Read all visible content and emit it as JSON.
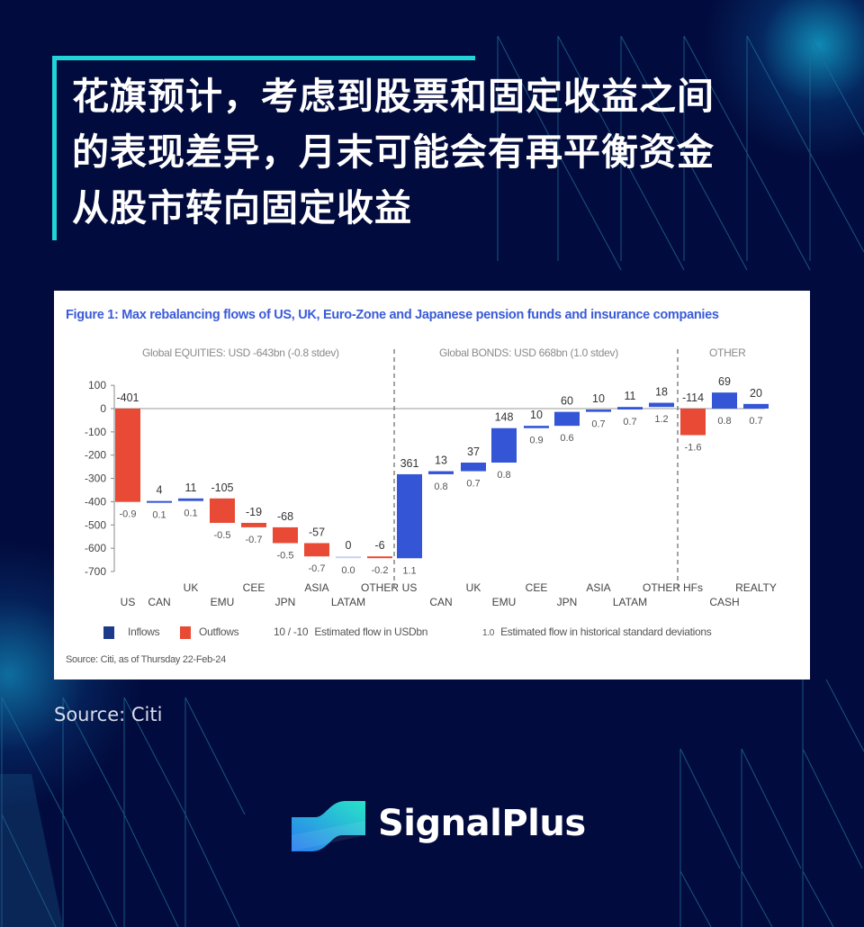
{
  "headline": {
    "lines": [
      "花旗预计，考虑到股票和固定收益之间",
      "的表现差异，月末可能会有再平衡资金",
      "从股市转向固定收益"
    ],
    "accent_color": "#22d3d8"
  },
  "figure": {
    "title": "Figure 1:  Max rebalancing flows of US, UK, Euro-Zone and Japanese pension funds and insurance companies",
    "section_labels": {
      "equities": "Global EQUITIES: USD -643bn (-0.8 stdev)",
      "bonds": "Global BONDS: USD 668bn (1.0 stdev)",
      "other": "OTHER"
    },
    "legend": {
      "inflows": "Inflows",
      "outflows": "Outflows",
      "usd_key": "10 / -10",
      "usd_desc": "Estimated flow in USDbn",
      "stdev_key": "1.0",
      "stdev_desc": "Estimated flow in historical standard deviations"
    },
    "source": "Source: Citi, as of Thursday 22-Feb-24"
  },
  "chart_data": {
    "type": "bar",
    "subtype": "waterfall",
    "title": "Figure 1: Max rebalancing flows of US, UK, Euro-Zone and Japanese pension funds and insurance companies",
    "xlabel": "",
    "ylabel": "",
    "ylim": [
      -700,
      100
    ],
    "yticks": [
      100,
      0,
      -100,
      -200,
      -300,
      -400,
      -500,
      -600,
      -700
    ],
    "grid": false,
    "legend_position": "bottom",
    "colors": {
      "inflows": "#3355d6",
      "outflows": "#e84a35"
    },
    "groups": [
      {
        "name": "Global EQUITIES: USD -643bn (-0.8 stdev)",
        "categories": [
          "US",
          "CAN",
          "UK",
          "EMU",
          "CEE",
          "JPN",
          "ASIA",
          "LATAM",
          "OTHER"
        ],
        "flows_usd_bn": [
          -401,
          4,
          11,
          -105,
          -19,
          -68,
          -57,
          0,
          -6
        ],
        "stdev": [
          -0.9,
          0.1,
          0.1,
          -0.5,
          -0.7,
          -0.5,
          -0.7,
          0.0,
          -0.2
        ]
      },
      {
        "name": "Global BONDS: USD 668bn (1.0 stdev)",
        "categories": [
          "US",
          "CAN",
          "UK",
          "EMU",
          "CEE",
          "JPN",
          "ASIA",
          "LATAM",
          "OTHER"
        ],
        "flows_usd_bn": [
          361,
          13,
          37,
          148,
          10,
          60,
          10,
          11,
          18
        ],
        "stdev": [
          1.1,
          0.8,
          0.7,
          0.8,
          0.9,
          0.6,
          0.7,
          0.7,
          1.2
        ]
      },
      {
        "name": "OTHER",
        "categories": [
          "HFs",
          "CASH",
          "REALTY"
        ],
        "flows_usd_bn": [
          -114,
          69,
          20
        ],
        "stdev": [
          -1.6,
          0.8,
          0.7
        ]
      }
    ],
    "legend": [
      "Inflows",
      "Outflows",
      "10 / -10 Estimated flow in USDbn",
      "1.0 Estimated flow in historical standard deviations"
    ]
  },
  "caption": {
    "source": "Source: Citi"
  },
  "brand": {
    "name": "SignalPlus"
  }
}
